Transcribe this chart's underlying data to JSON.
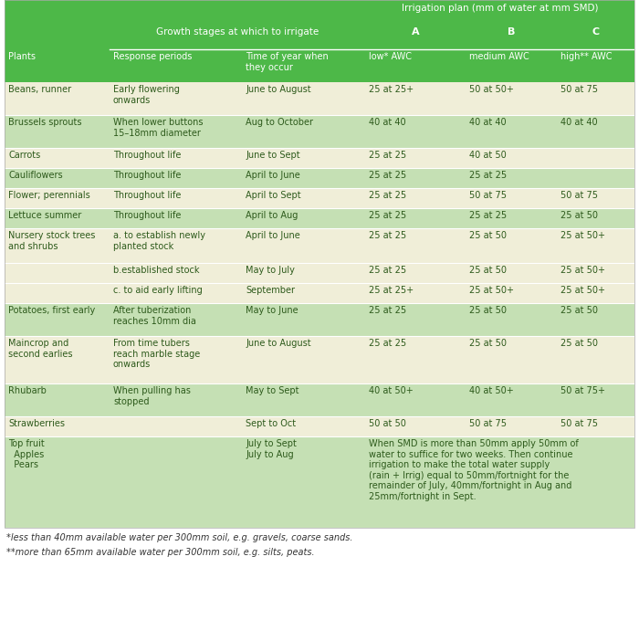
{
  "header_bg": "#4db848",
  "row_bg_light": "#f0eed8",
  "row_bg_green": "#c5e0b4",
  "text_dark": "#2d5a1b",
  "header_text": "#ffffff",
  "footnote1": "*less than 40mm available water per 300mm soil, e.g. gravels, coarse sands.",
  "footnote2": "**more than 65mm available water per 300mm soil, e.g. silts, peats.",
  "rows": [
    {
      "plant": "Beans, runner",
      "response": "Early flowering\nonwards",
      "time": "June to August",
      "A": "25 at 25+",
      "B": "50 at 50+",
      "C": "50 at 75",
      "bg": "light"
    },
    {
      "plant": "Brussels sprouts",
      "response": "When lower buttons\n15–18mm diameter",
      "time": "Aug to October",
      "A": "40 at 40",
      "B": "40 at 40",
      "C": "40 at 40",
      "bg": "green"
    },
    {
      "plant": "Carrots",
      "response": "Throughout life",
      "time": "June to Sept",
      "A": "25 at 25",
      "B": "40 at 50",
      "C": "",
      "bg": "light"
    },
    {
      "plant": "Cauliflowers",
      "response": "Throughout life",
      "time": "April to June",
      "A": "25 at 25",
      "B": "25 at 25",
      "C": "",
      "bg": "green"
    },
    {
      "plant": "Flower; perennials",
      "response": "Throughout life",
      "time": "April to Sept",
      "A": "25 at 25",
      "B": "50 at 75",
      "C": "50 at 75",
      "bg": "light"
    },
    {
      "plant": "Lettuce summer",
      "response": "Throughout life",
      "time": "April to Aug",
      "A": "25 at 25",
      "B": "25 at 25",
      "C": "25 at 50",
      "bg": "green"
    },
    {
      "plant": "Nursery stock trees\nand shrubs",
      "response": "a. to establish newly\nplanted stock",
      "time": "April to June",
      "A": "25 at 25",
      "B": "25 at 50",
      "C": "25 at 50+",
      "bg": "light"
    },
    {
      "plant": "",
      "response": "b.established stock",
      "time": "May to July",
      "A": "25 at 25",
      "B": "25 at 50",
      "C": "25 at 50+",
      "bg": "light"
    },
    {
      "plant": "",
      "response": "c. to aid early lifting",
      "time": "September",
      "A": "25 at 25+",
      "B": "25 at 50+",
      "C": "25 at 50+",
      "bg": "light"
    },
    {
      "plant": "Potatoes, first early",
      "response": "After tuberization\nreaches 10mm dia",
      "time": "May to June",
      "A": "25 at 25",
      "B": "25 at 50",
      "C": "25 at 50",
      "bg": "green"
    },
    {
      "plant": "Maincrop and\nsecond earlies",
      "response": "From time tubers\nreach marble stage\nonwards",
      "time": "June to August",
      "A": "25 at 25",
      "B": "25 at 50",
      "C": "25 at 50",
      "bg": "light"
    },
    {
      "plant": "Rhubarb",
      "response": "When pulling has\nstopped",
      "time": "May to Sept",
      "A": "40 at 50+",
      "B": "40 at 50+",
      "C": "50 at 75+",
      "bg": "green"
    },
    {
      "plant": "Strawberries",
      "response": "",
      "time": "Sept to Oct",
      "A": "50 at 50",
      "B": "50 at 75",
      "C": "50 at 75",
      "bg": "light"
    },
    {
      "plant": "Top fruit\n  Apples\n  Pears",
      "response": "",
      "time": "July to Sept\nJuly to Aug",
      "A": "When SMD is more than 50mm apply 50mm of\nwater to suffice for two weeks. Then continue\nirrigation to make the total water supply\n(rain + Irrig) equal to 50mm/fortnight for the\nremainder of July, 40mm/fortnight in Aug and\n25mm/fortnight in Sept.",
      "B": "",
      "C": "",
      "bg": "green",
      "merged_ABC": true
    }
  ]
}
